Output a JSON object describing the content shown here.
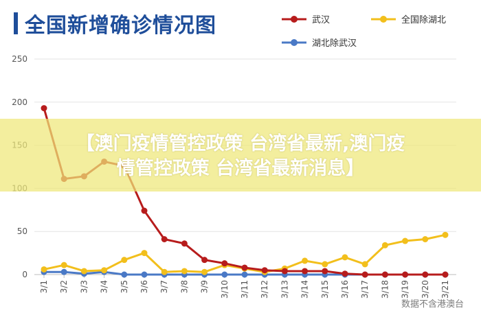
{
  "page": {
    "title": "全国新增确诊情况图",
    "banner_line1": "【澳门疫情管控政策 台湾省最新,澳门疫",
    "banner_line2": "情管控政策 台湾省最新消息】",
    "watermark": "数据不含港澳台"
  },
  "chart_data": {
    "type": "line",
    "title": "全国新增确诊情况图",
    "categories": [
      "3/1",
      "3/2",
      "3/3",
      "3/4",
      "3/5",
      "3/6",
      "3/7",
      "3/8",
      "3/9",
      "3/10",
      "3/11",
      "3/12",
      "3/13",
      "3/14",
      "3/15",
      "3/16",
      "3/17",
      "3/18",
      "3/19",
      "3/20",
      "3/21"
    ],
    "ylim": [
      0,
      250
    ],
    "yticks": [
      0,
      50,
      100,
      150,
      200,
      250
    ],
    "grid": true,
    "legend_position": "top-right",
    "series": [
      {
        "name": "武汉",
        "color": "#b71c1c",
        "values": [
          193,
          111,
          114,
          131,
          126,
          74,
          41,
          36,
          17,
          13,
          8,
          5,
          4,
          4,
          4,
          1,
          0,
          0,
          0,
          0,
          0
        ]
      },
      {
        "name": "全国除湖北",
        "color": "#f2bf1c",
        "values": [
          6,
          11,
          4,
          5,
          17,
          25,
          3,
          4,
          3,
          11,
          7,
          3,
          7,
          16,
          12,
          20,
          12,
          34,
          39,
          41,
          46
        ]
      },
      {
        "name": "湖北除武汉",
        "color": "#4a79c6",
        "values": [
          3,
          3,
          1,
          3,
          0,
          0,
          0,
          0,
          0,
          0,
          0,
          0,
          0,
          0,
          0,
          0,
          0,
          0,
          0,
          0,
          0
        ]
      }
    ]
  }
}
